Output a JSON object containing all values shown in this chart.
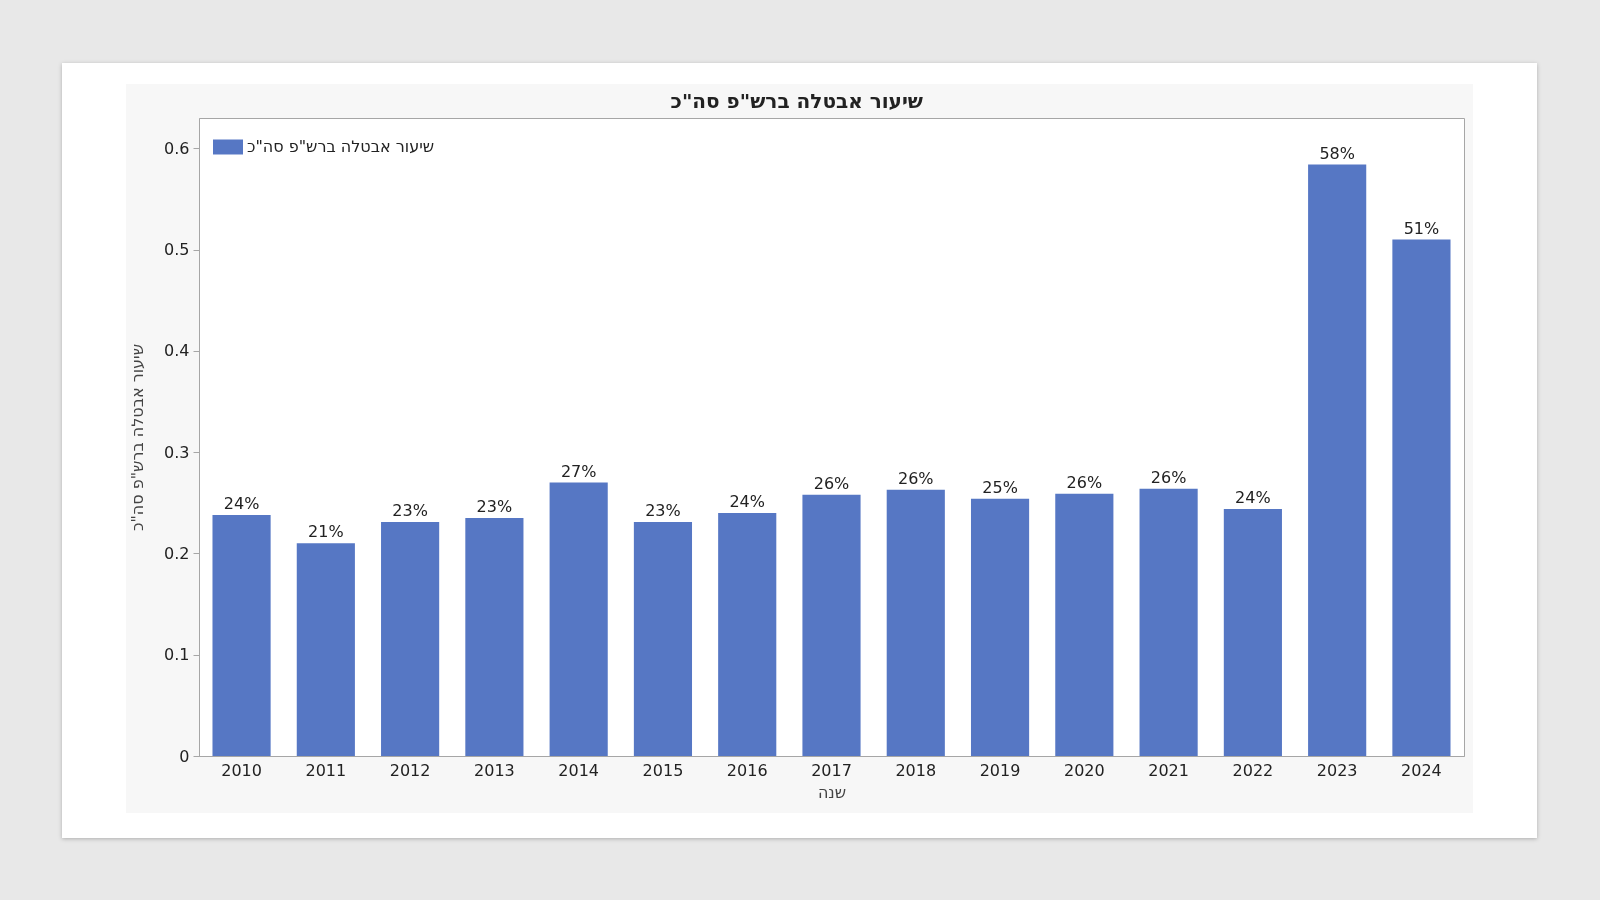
{
  "chart_data": {
    "type": "bar",
    "title": "שיעור אבטלה ברש\"פ סה\"כ",
    "xlabel": "שנה",
    "ylabel": "שיעור אבטלה ברש\"פ סה\"כ",
    "categories": [
      "2010",
      "2011",
      "2012",
      "2013",
      "2014",
      "2015",
      "2016",
      "2017",
      "2018",
      "2019",
      "2020",
      "2021",
      "2022",
      "2023",
      "2024"
    ],
    "series": [
      {
        "name": "שיעור אבטלה ברש\"פ סה\"כ",
        "color": "#5677c4",
        "values": [
          0.238,
          0.21,
          0.231,
          0.235,
          0.27,
          0.231,
          0.24,
          0.258,
          0.263,
          0.254,
          0.259,
          0.264,
          0.244,
          0.584,
          0.51
        ],
        "value_labels": [
          "24%",
          "21%",
          "23%",
          "23%",
          "27%",
          "23%",
          "24%",
          "26%",
          "26%",
          "25%",
          "26%",
          "26%",
          "24%",
          "58%",
          "51%"
        ]
      }
    ],
    "ylim": [
      0,
      0.63
    ],
    "yticks": [
      0,
      0.1,
      0.2,
      0.3,
      0.4,
      0.5,
      0.6
    ],
    "legend": "top left"
  }
}
